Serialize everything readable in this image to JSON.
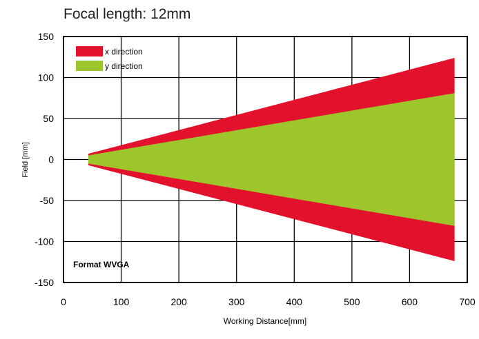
{
  "chart_data": {
    "type": "area",
    "title": "Focal length: 12mm",
    "xlabel": "Working Distance[mm]",
    "ylabel": "Field [mm]",
    "annotation": "Format WVGA",
    "xlim": [
      0,
      700
    ],
    "ylim": [
      -150,
      150
    ],
    "xticks": [
      0,
      100,
      200,
      300,
      400,
      500,
      600,
      700
    ],
    "yticks": [
      150,
      100,
      50,
      0,
      -50,
      -100,
      -150
    ],
    "xtick_labels": [
      "0",
      "100",
      "200",
      "300",
      "400",
      "500",
      "600",
      "700"
    ],
    "ytick_labels": [
      "150",
      "100",
      "50",
      "0",
      "-50",
      "-100",
      "-150"
    ],
    "grid": true,
    "legend_position": "top-left",
    "series": [
      {
        "name": "x direction",
        "color": "#e3122c",
        "x": [
          43,
          678
        ],
        "upper": [
          7,
          124
        ],
        "lower": [
          -7,
          -124
        ]
      },
      {
        "name": "y direction",
        "color": "#9dc62c",
        "x": [
          43,
          678
        ],
        "upper": [
          5,
          81
        ],
        "lower": [
          -5,
          -81
        ]
      }
    ]
  }
}
